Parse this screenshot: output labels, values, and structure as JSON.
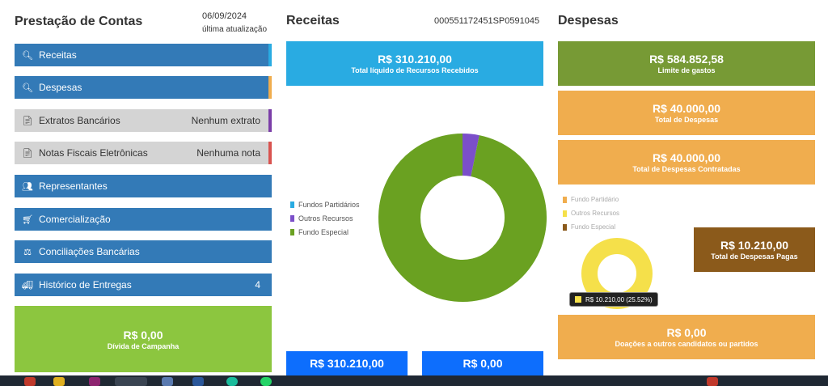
{
  "left": {
    "title": "Prestação de Contas",
    "date": "06/09/2024",
    "updated": "última atualização",
    "menu": [
      {
        "label": "Receitas",
        "icon": "search-icon"
      },
      {
        "label": "Despesas",
        "icon": "search-icon"
      },
      {
        "label": "Extratos Bancários",
        "right": "Nenhum extrato",
        "icon": "document-icon"
      },
      {
        "label": "Notas Fiscais Eletrônicas",
        "right": "Nenhuma nota",
        "icon": "document-icon"
      },
      {
        "label": "Representantes",
        "icon": "users-icon"
      },
      {
        "label": "Comercialização",
        "icon": "cart-icon"
      },
      {
        "label": "Conciliações Bancárias",
        "icon": "balance-icon"
      },
      {
        "label": "Histórico de Entregas",
        "right": "4",
        "icon": "truck-icon"
      }
    ],
    "debt": {
      "value": "R$ 0,00",
      "label": "Dívida de Campanha"
    }
  },
  "receitas": {
    "title": "Receitas",
    "code": "000551172451SP0591045",
    "total": {
      "value": "R$ 310.210,00",
      "label": "Total líquido de Recursos Recebidos"
    },
    "legend": [
      "Fundos Partidários",
      "Outros Recursos",
      "Fundo Especial"
    ],
    "colors": [
      "#29abe2",
      "#7b4fc9",
      "#6aa121"
    ],
    "bottom": [
      {
        "value": "R$ 310.210,00"
      },
      {
        "value": "R$ 0,00"
      }
    ]
  },
  "despesas": {
    "title": "Despesas",
    "limit": {
      "value": "R$ 584.852,58",
      "label": "Limite de gastos"
    },
    "total": {
      "value": "R$ 40.000,00",
      "label": "Total de Despesas"
    },
    "contracted": {
      "value": "R$ 40.000,00",
      "label": "Total de Despesas Contratadas"
    },
    "legend": [
      "Fundo Partidário",
      "Outros Recursos",
      "Fundo Especial"
    ],
    "legend_colors": [
      "#f0ad4e",
      "#f5e04a",
      "#8b5a1b"
    ],
    "paid": {
      "value": "R$ 10.210,00",
      "label": "Total de Despesas Pagas"
    },
    "tooltip": "R$ 10.210,00 (25.52%)",
    "donations": {
      "value": "R$ 0,00",
      "label": "Doações a outros candidatos ou partidos"
    }
  },
  "chart_data": [
    {
      "type": "pie",
      "categories": [
        "Fundos Partidários",
        "Outros Recursos",
        "Fundo Especial"
      ],
      "values": [
        0,
        3.2,
        96.8
      ]
    },
    {
      "type": "pie",
      "categories": [
        "Fundo Partidário",
        "Outros Recursos",
        "Fundo Especial"
      ],
      "values": [
        0,
        100,
        0
      ]
    }
  ]
}
